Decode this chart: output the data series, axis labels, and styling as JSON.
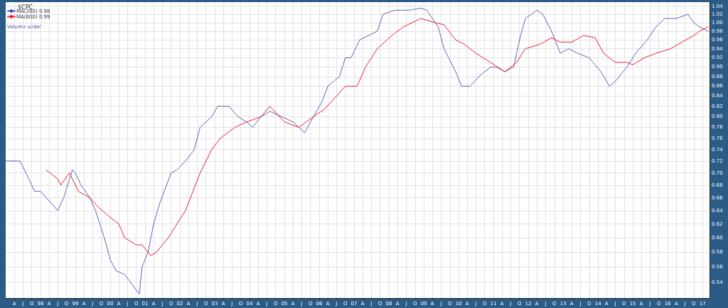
{
  "chart_data": {
    "type": "line",
    "title": "$CPC",
    "annotations": [
      "Volume undef"
    ],
    "log": "y",
    "grid": true,
    "legend": "top left",
    "marker": "none",
    "xlim": [
      "1997-01",
      "2017-03-15"
    ],
    "ylim": [
      0.52,
      1.05
    ],
    "yticks": [
      0.54,
      0.56,
      0.58,
      {
        "value": 0.6,
        "label": "0.60"
      },
      0.62,
      0.64,
      0.66,
      0.68,
      {
        "value": 0.7,
        "label": "0.70"
      },
      0.72,
      0.74,
      0.76,
      0.78,
      {
        "value": 0.8,
        "label": "0.80"
      },
      0.82,
      0.84,
      0.86,
      0.88,
      {
        "value": 0.9,
        "label": "0.90"
      },
      0.92,
      0.94,
      0.96,
      0.98,
      {
        "value": 1,
        "label": "1.00"
      },
      1.02,
      1.04
    ],
    "xticks": [
      {
        "value": "1997-04",
        "label": "A"
      },
      {
        "value": "1997-07",
        "label": "J"
      },
      {
        "value": "1997-10",
        "label": "O"
      },
      {
        "value": "1998-01",
        "label": "98"
      },
      {
        "value": "1998-04",
        "label": "A"
      },
      {
        "value": "1998-07",
        "label": "J"
      },
      {
        "value": "1998-10",
        "label": "O"
      },
      {
        "value": "1999-01",
        "label": "99"
      },
      {
        "value": "1999-04",
        "label": "A"
      },
      {
        "value": "1999-07",
        "label": "J"
      },
      {
        "value": "1999-10",
        "label": "O"
      },
      {
        "value": "2000-01",
        "label": "00"
      },
      {
        "value": "2000-04",
        "label": "A"
      },
      {
        "value": "2000-07",
        "label": "J"
      },
      {
        "value": "2000-10",
        "label": "O"
      },
      {
        "value": "2001-01",
        "label": "01"
      },
      {
        "value": "2001-04",
        "label": "A"
      },
      {
        "value": "2001-07",
        "label": "J"
      },
      {
        "value": "2001-10",
        "label": "O"
      },
      {
        "value": "2002-01",
        "label": "02"
      },
      {
        "value": "2002-04",
        "label": "A"
      },
      {
        "value": "2002-07",
        "label": "J"
      },
      {
        "value": "2002-10",
        "label": "O"
      },
      {
        "value": "2003-01",
        "label": "03"
      },
      {
        "value": "2003-04",
        "label": "A"
      },
      {
        "value": "2003-07",
        "label": "J"
      },
      {
        "value": "2003-10",
        "label": "O"
      },
      {
        "value": "2004-01",
        "label": "04"
      },
      {
        "value": "2004-04",
        "label": "A"
      },
      {
        "value": "2004-07",
        "label": "J"
      },
      {
        "value": "2004-10",
        "label": "O"
      },
      {
        "value": "2005-01",
        "label": "05"
      },
      {
        "value": "2005-04",
        "label": "A"
      },
      {
        "value": "2005-07",
        "label": "J"
      },
      {
        "value": "2005-10",
        "label": "O"
      },
      {
        "value": "2006-01",
        "label": "06"
      },
      {
        "value": "2006-04",
        "label": "A"
      },
      {
        "value": "2006-07",
        "label": "J"
      },
      {
        "value": "2006-10",
        "label": "O"
      },
      {
        "value": "2007-01",
        "label": "07"
      },
      {
        "value": "2007-04",
        "label": "A"
      },
      {
        "value": "2007-07",
        "label": "J"
      },
      {
        "value": "2007-10",
        "label": "O"
      },
      {
        "value": "2008-01",
        "label": "08"
      },
      {
        "value": "2008-04",
        "label": "A"
      },
      {
        "value": "2008-07",
        "label": "J"
      },
      {
        "value": "2008-10",
        "label": "O"
      },
      {
        "value": "2009-01",
        "label": "09"
      },
      {
        "value": "2009-04",
        "label": "A"
      },
      {
        "value": "2009-07",
        "label": "J"
      },
      {
        "value": "2009-10",
        "label": "O"
      },
      {
        "value": "2010-01",
        "label": "10"
      },
      {
        "value": "2010-04",
        "label": "A"
      },
      {
        "value": "2010-07",
        "label": "J"
      },
      {
        "value": "2010-10",
        "label": "O"
      },
      {
        "value": "2011-01",
        "label": "11"
      },
      {
        "value": "2011-04",
        "label": "A"
      },
      {
        "value": "2011-07",
        "label": "J"
      },
      {
        "value": "2011-10",
        "label": "O"
      },
      {
        "value": "2012-01",
        "label": "12"
      },
      {
        "value": "2012-04",
        "label": "A"
      },
      {
        "value": "2012-07",
        "label": "J"
      },
      {
        "value": "2012-10",
        "label": "O"
      },
      {
        "value": "2013-01",
        "label": "13"
      },
      {
        "value": "2013-04",
        "label": "A"
      },
      {
        "value": "2013-07",
        "label": "J"
      },
      {
        "value": "2013-10",
        "label": "O"
      },
      {
        "value": "2014-01",
        "label": "14"
      },
      {
        "value": "2014-04",
        "label": "A"
      },
      {
        "value": "2014-07",
        "label": "J"
      },
      {
        "value": "2014-10",
        "label": "O"
      },
      {
        "value": "2015-01",
        "label": "15"
      },
      {
        "value": "2015-04",
        "label": "A"
      },
      {
        "value": "2015-07",
        "label": "J"
      },
      {
        "value": "2015-10",
        "label": "O"
      },
      {
        "value": "2016-01",
        "label": "16"
      },
      {
        "value": "2016-04",
        "label": "A"
      },
      {
        "value": "2016-07",
        "label": "J"
      },
      {
        "value": "2016-10",
        "label": "O"
      },
      {
        "value": "2017-01",
        "label": "17"
      }
    ],
    "series": [
      {
        "name": "MA(260) 0.98",
        "color": "#4a4aa8",
        "line_style": "dotted",
        "x": [
          "1997-01",
          "1997-03",
          "1997-06",
          "1997-08",
          "1997-11",
          "1998-01",
          "1998-05",
          "1998-07",
          "1998-09",
          "1998-12",
          "1999-01",
          "1999-03",
          "1999-06",
          "1999-08",
          "1999-11",
          "2000-01",
          "2000-03",
          "2000-06",
          "2000-08",
          "2000-11",
          "2000-12",
          "2001-02",
          "2001-04",
          "2001-06",
          "2001-10",
          "2001-12",
          "2002-03",
          "2002-06",
          "2002-08",
          "2002-12",
          "2003-02",
          "2003-06",
          "2003-09",
          "2003-12",
          "2004-02",
          "2004-05",
          "2004-08",
          "2004-12",
          "2005-04",
          "2005-08",
          "2005-10",
          "2006-02",
          "2006-04",
          "2006-08",
          "2006-10",
          "2006-12",
          "2007-03",
          "2007-06",
          "2007-09",
          "2007-11",
          "2008-03",
          "2008-08",
          "2008-12",
          "2009-02",
          "2009-06",
          "2009-08",
          "2009-12",
          "2010-02",
          "2010-05",
          "2010-08",
          "2010-12",
          "2011-02",
          "2011-05",
          "2011-08",
          "2011-10",
          "2011-12",
          "2012-04",
          "2012-06",
          "2012-09",
          "2012-12",
          "2013-03",
          "2013-06",
          "2013-10",
          "2014-02",
          "2014-05",
          "2014-07",
          "2014-11",
          "2015-02",
          "2015-06",
          "2015-09",
          "2015-12",
          "2016-04",
          "2016-08",
          "2016-10",
          "2016-12",
          "2017-03"
        ],
        "values": [
          0.72,
          0.72,
          0.72,
          0.7,
          0.67,
          0.67,
          0.65,
          0.64,
          0.66,
          0.705,
          0.7,
          0.68,
          0.66,
          0.64,
          0.6,
          0.57,
          0.555,
          0.55,
          0.54,
          0.525,
          0.56,
          0.58,
          0.62,
          0.65,
          0.7,
          0.705,
          0.72,
          0.74,
          0.78,
          0.8,
          0.82,
          0.82,
          0.8,
          0.79,
          0.78,
          0.8,
          0.81,
          0.8,
          0.79,
          0.77,
          0.79,
          0.83,
          0.86,
          0.88,
          0.92,
          0.92,
          0.96,
          0.97,
          0.98,
          1.02,
          1.03,
          1.03,
          1.035,
          1.03,
          0.99,
          0.94,
          0.89,
          0.86,
          0.86,
          0.88,
          0.9,
          0.9,
          0.89,
          0.9,
          0.96,
          1.01,
          1.03,
          1.02,
          0.98,
          0.93,
          0.94,
          0.93,
          0.92,
          0.89,
          0.86,
          0.87,
          0.9,
          0.93,
          0.96,
          0.99,
          1.01,
          1.01,
          1.02,
          1,
          0.99,
          0.98
        ]
      },
      {
        "name": "MA(600) 0.99",
        "color": "#e8203c",
        "line_style": "solid",
        "x": [
          "1998-03",
          "1998-07",
          "1998-08",
          "1998-11",
          "1999-02",
          "1999-06",
          "1999-09",
          "2000-01",
          "2000-04",
          "2000-06",
          "2000-10",
          "2000-12",
          "2001-03",
          "2001-05",
          "2001-09",
          "2001-12",
          "2002-03",
          "2002-08",
          "2002-12",
          "2003-03",
          "2003-08",
          "2003-12",
          "2004-05",
          "2004-08",
          "2005-01",
          "2005-06",
          "2005-11",
          "2006-03",
          "2006-07",
          "2006-10",
          "2007-02",
          "2007-05",
          "2007-09",
          "2008-02",
          "2008-06",
          "2008-12",
          "2009-05",
          "2009-08",
          "2009-12",
          "2010-03",
          "2010-07",
          "2010-12",
          "2011-05",
          "2011-09",
          "2011-12",
          "2012-05",
          "2012-09",
          "2012-12",
          "2013-04",
          "2013-08",
          "2013-12",
          "2014-03",
          "2014-07",
          "2014-11",
          "2015-01",
          "2015-05",
          "2015-09",
          "2016-02",
          "2016-06",
          "2016-10",
          "2016-12",
          "2017-03"
        ],
        "values": [
          0.705,
          0.69,
          0.68,
          0.7,
          0.67,
          0.66,
          0.645,
          0.63,
          0.62,
          0.6,
          0.59,
          0.59,
          0.575,
          0.58,
          0.6,
          0.62,
          0.64,
          0.7,
          0.74,
          0.76,
          0.78,
          0.79,
          0.8,
          0.82,
          0.79,
          0.78,
          0.8,
          0.815,
          0.84,
          0.86,
          0.86,
          0.9,
          0.94,
          0.97,
          0.99,
          1.01,
          1,
          0.995,
          0.96,
          0.95,
          0.93,
          0.91,
          0.89,
          0.91,
          0.94,
          0.95,
          0.965,
          0.955,
          0.955,
          0.97,
          0.965,
          0.93,
          0.91,
          0.91,
          0.905,
          0.92,
          0.93,
          0.94,
          0.955,
          0.97,
          0.98,
          0.99
        ]
      }
    ]
  }
}
